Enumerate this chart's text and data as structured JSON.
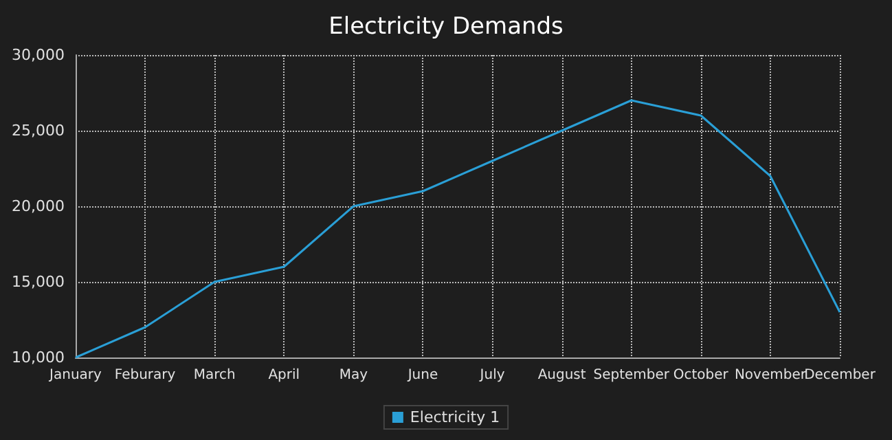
{
  "chart_data": {
    "type": "line",
    "title": "Electricity Demands",
    "categories": [
      "January",
      "Feburary",
      "March",
      "April",
      "May",
      "June",
      "July",
      "August",
      "September",
      "October",
      "November",
      "December"
    ],
    "series": [
      {
        "name": "Electricity 1",
        "color": "#2a9fd6",
        "values": [
          10000,
          12000,
          15000,
          16000,
          20000,
          21000,
          23000,
          25000,
          27000,
          26000,
          22000,
          13000
        ]
      }
    ],
    "ylim": [
      10000,
      30000
    ],
    "yticks": [
      {
        "value": 10000,
        "label": "10,000"
      },
      {
        "value": 15000,
        "label": "15,000"
      },
      {
        "value": 20000,
        "label": "20,000"
      },
      {
        "value": 25000,
        "label": "25,000"
      },
      {
        "value": 30000,
        "label": "30,000"
      }
    ],
    "grid": true,
    "legend": "bottom",
    "marker": "none",
    "line_style": "solid"
  }
}
